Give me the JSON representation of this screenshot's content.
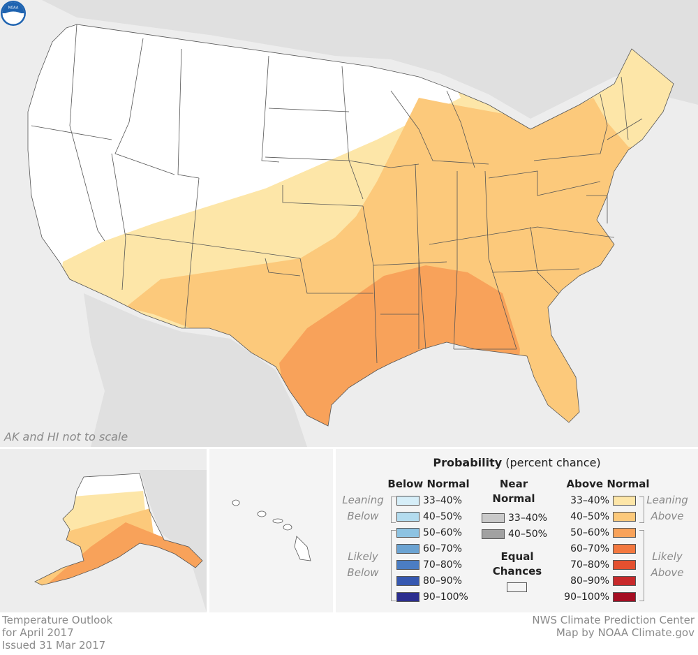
{
  "map": {
    "scale_note": "AK and HI not to scale",
    "logo_text": "NOAA",
    "colors": {
      "background": "#ededed",
      "land": "#ffffff",
      "above_33_40": "#fde6a8",
      "above_40_50": "#fcc97b",
      "above_50_60": "#f8a25a",
      "outline": "#555555"
    }
  },
  "legend": {
    "title": "Probability",
    "title_suffix": "(percent chance)",
    "below_normal": {
      "heading": "Below Normal",
      "leaning_label": "Leaning Below",
      "likely_label": "Likely Below",
      "items": [
        {
          "label": "33–40%",
          "color": "#d6eef8"
        },
        {
          "label": "40–50%",
          "color": "#b3dcef"
        },
        {
          "label": "50–60%",
          "color": "#8dc3e2"
        },
        {
          "label": "60–70%",
          "color": "#6ba3d2"
        },
        {
          "label": "70–80%",
          "color": "#4b7dc3"
        },
        {
          "label": "80–90%",
          "color": "#3658b0"
        },
        {
          "label": "90–100%",
          "color": "#2c2e8f"
        }
      ]
    },
    "near_normal": {
      "heading": "Near Normal",
      "items": [
        {
          "label": "33–40%",
          "color": "#c9c9c9"
        },
        {
          "label": "40–50%",
          "color": "#a1a1a1"
        }
      ]
    },
    "equal_chances": {
      "heading": "Equal Chances",
      "color": "#ffffff"
    },
    "above_normal": {
      "heading": "Above Normal",
      "leaning_label": "Leaning Above",
      "likely_label": "Likely Above",
      "items": [
        {
          "label": "33–40%",
          "color": "#fde6a8"
        },
        {
          "label": "40–50%",
          "color": "#fcc97b"
        },
        {
          "label": "50–60%",
          "color": "#f8a25a"
        },
        {
          "label": "60–70%",
          "color": "#f3783f"
        },
        {
          "label": "70–80%",
          "color": "#e4502f"
        },
        {
          "label": "80–90%",
          "color": "#c8292b"
        },
        {
          "label": "90–100%",
          "color": "#a50e23"
        }
      ]
    }
  },
  "footer": {
    "left": [
      "Temperature Outlook",
      "for April 2017",
      "Issued 31 Mar 2017"
    ],
    "right": [
      "NWS Climate Prediction Center",
      "Map by NOAA Climate.gov"
    ]
  }
}
